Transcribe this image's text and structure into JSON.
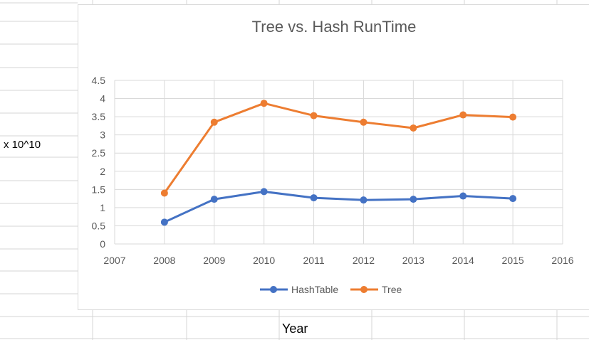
{
  "sheet": {
    "y_axis_cell_text": "x 10^10",
    "x_axis_cell_text": "Year"
  },
  "chart_data": {
    "type": "line",
    "title": "Tree vs. Hash RunTime",
    "xlabel": "",
    "ylabel": "",
    "x": [
      2008,
      2009,
      2010,
      2011,
      2012,
      2013,
      2014,
      2015
    ],
    "series": [
      {
        "name": "HashTable",
        "color": "#4472c4",
        "values": [
          0.6,
          1.23,
          1.44,
          1.27,
          1.21,
          1.23,
          1.32,
          1.25
        ]
      },
      {
        "name": "Tree",
        "color": "#ed7d31",
        "values": [
          1.4,
          3.35,
          3.87,
          3.53,
          3.35,
          3.19,
          3.55,
          3.49
        ]
      }
    ],
    "xlim": [
      2007,
      2016
    ],
    "ylim": [
      0,
      4.5
    ],
    "xticks": [
      "2007",
      "2008",
      "2009",
      "2010",
      "2011",
      "2012",
      "2013",
      "2014",
      "2015",
      "2016"
    ],
    "yticks": [
      "0",
      "0.5",
      "1",
      "1.5",
      "2",
      "2.5",
      "3",
      "3.5",
      "4",
      "4.5"
    ],
    "grid": true,
    "legend": "bottom"
  }
}
